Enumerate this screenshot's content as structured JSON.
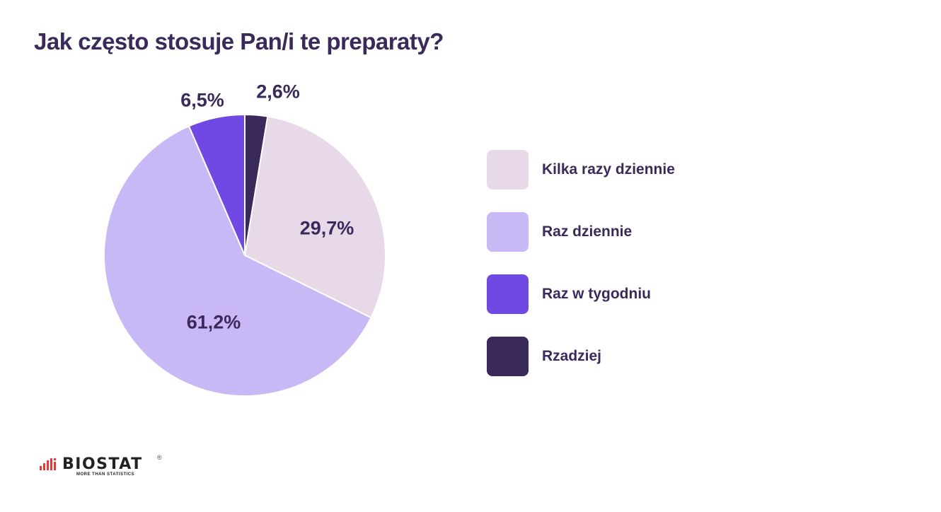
{
  "title": "Jak często stosuje Pan/i te preparaty?",
  "chart_data": {
    "type": "pie",
    "title": "Jak często stosuje Pan/i te preparaty?",
    "start_angle_deg": 0,
    "direction": "clockwise",
    "slices": [
      {
        "label": "Rzadziej",
        "value": 2.6,
        "display": "2,6%",
        "color": "#3a2a5c",
        "label_pos": [
          393,
          130
        ]
      },
      {
        "label": "Kilka razy dziennie",
        "value": 29.7,
        "display": "29,7%",
        "color": "#e8d9e8",
        "label_pos": [
          462,
          323
        ]
      },
      {
        "label": "Raz dziennie",
        "value": 61.2,
        "display": "61,2%",
        "color": "#c8b8f6",
        "label_pos": [
          302,
          456
        ]
      },
      {
        "label": "Raz w tygodniu",
        "value": 6.5,
        "display": "6,5%",
        "color": "#7048e3",
        "label_pos": [
          286,
          142
        ]
      }
    ],
    "legend": {
      "position": "right",
      "entries": [
        {
          "label": "Kilka razy dziennie",
          "color": "#e8d9e8"
        },
        {
          "label": "Raz dziennie",
          "color": "#c8b8f6"
        },
        {
          "label": "Raz w tygodniu",
          "color": "#7048e3"
        },
        {
          "label": "Rzadziej",
          "color": "#3a2a5c"
        }
      ]
    },
    "center": [
      346,
      361
    ],
    "radius": 199
  },
  "logo": {
    "name": "BIOSTAT",
    "tagline": "MORE THAN STATISTICS",
    "registered": "®",
    "accent_color": "#e53935"
  }
}
